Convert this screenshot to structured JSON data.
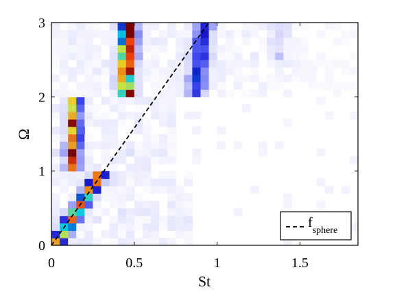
{
  "chart_data": {
    "type": "heatmap",
    "xlabel": "St",
    "ylabel": "Ω",
    "xlim": [
      0,
      1.85
    ],
    "ylim": [
      0,
      3
    ],
    "x_ticks": [
      0,
      0.5,
      1,
      1.5
    ],
    "x_tick_labels": [
      "0",
      "0.5",
      "1",
      "1.5"
    ],
    "y_ticks": [
      0,
      1,
      2,
      3
    ],
    "y_tick_labels": [
      "0",
      "1",
      "2",
      "3"
    ],
    "colormap": "white-blue-cyan-yellow-red",
    "grid": false,
    "ridges": [
      {
        "name": "low-Omega ridge",
        "points": [
          [
            0.03,
            0.05
          ],
          [
            0.08,
            0.2
          ],
          [
            0.13,
            0.38
          ],
          [
            0.18,
            0.55
          ],
          [
            0.23,
            0.72
          ],
          [
            0.27,
            0.88
          ],
          [
            0.3,
            1.0
          ]
        ],
        "peak": 0.75,
        "st_width": 0.035
      },
      {
        "name": "mid-Omega ridge",
        "points": [
          [
            0.13,
            1.0
          ],
          [
            0.13,
            1.2
          ],
          [
            0.135,
            1.5
          ],
          [
            0.13,
            1.75
          ],
          [
            0.135,
            2.0
          ]
        ],
        "peak": 0.85,
        "st_width": 0.028
      },
      {
        "name": "high-Omega main ridge",
        "points": [
          [
            0.46,
            2.0
          ],
          [
            0.445,
            2.2
          ],
          [
            0.455,
            2.45
          ],
          [
            0.46,
            2.65
          ],
          [
            0.465,
            3.0
          ]
        ],
        "peak": 1.0,
        "st_width": 0.034
      },
      {
        "name": "high-Omega second ridge",
        "points": [
          [
            0.87,
            2.0
          ],
          [
            0.88,
            2.3
          ],
          [
            0.9,
            2.6
          ],
          [
            0.93,
            3.0
          ]
        ],
        "peak": 0.42,
        "st_width": 0.04
      },
      {
        "name": "high-Omega third ridge",
        "points": [
          [
            1.36,
            2.5
          ],
          [
            1.37,
            2.75
          ],
          [
            1.38,
            3.0
          ]
        ],
        "peak": 0.12,
        "st_width": 0.04
      }
    ],
    "reference_line": {
      "label": "f",
      "label_sub": "sphere",
      "style": "dashed",
      "color": "#000000",
      "x": [
        0,
        0.95
      ],
      "y": [
        0,
        3
      ]
    },
    "legend": {
      "position": "bottom-right",
      "entries": [
        {
          "text": "f",
          "sub": "sphere",
          "style": "dashed"
        }
      ]
    }
  }
}
